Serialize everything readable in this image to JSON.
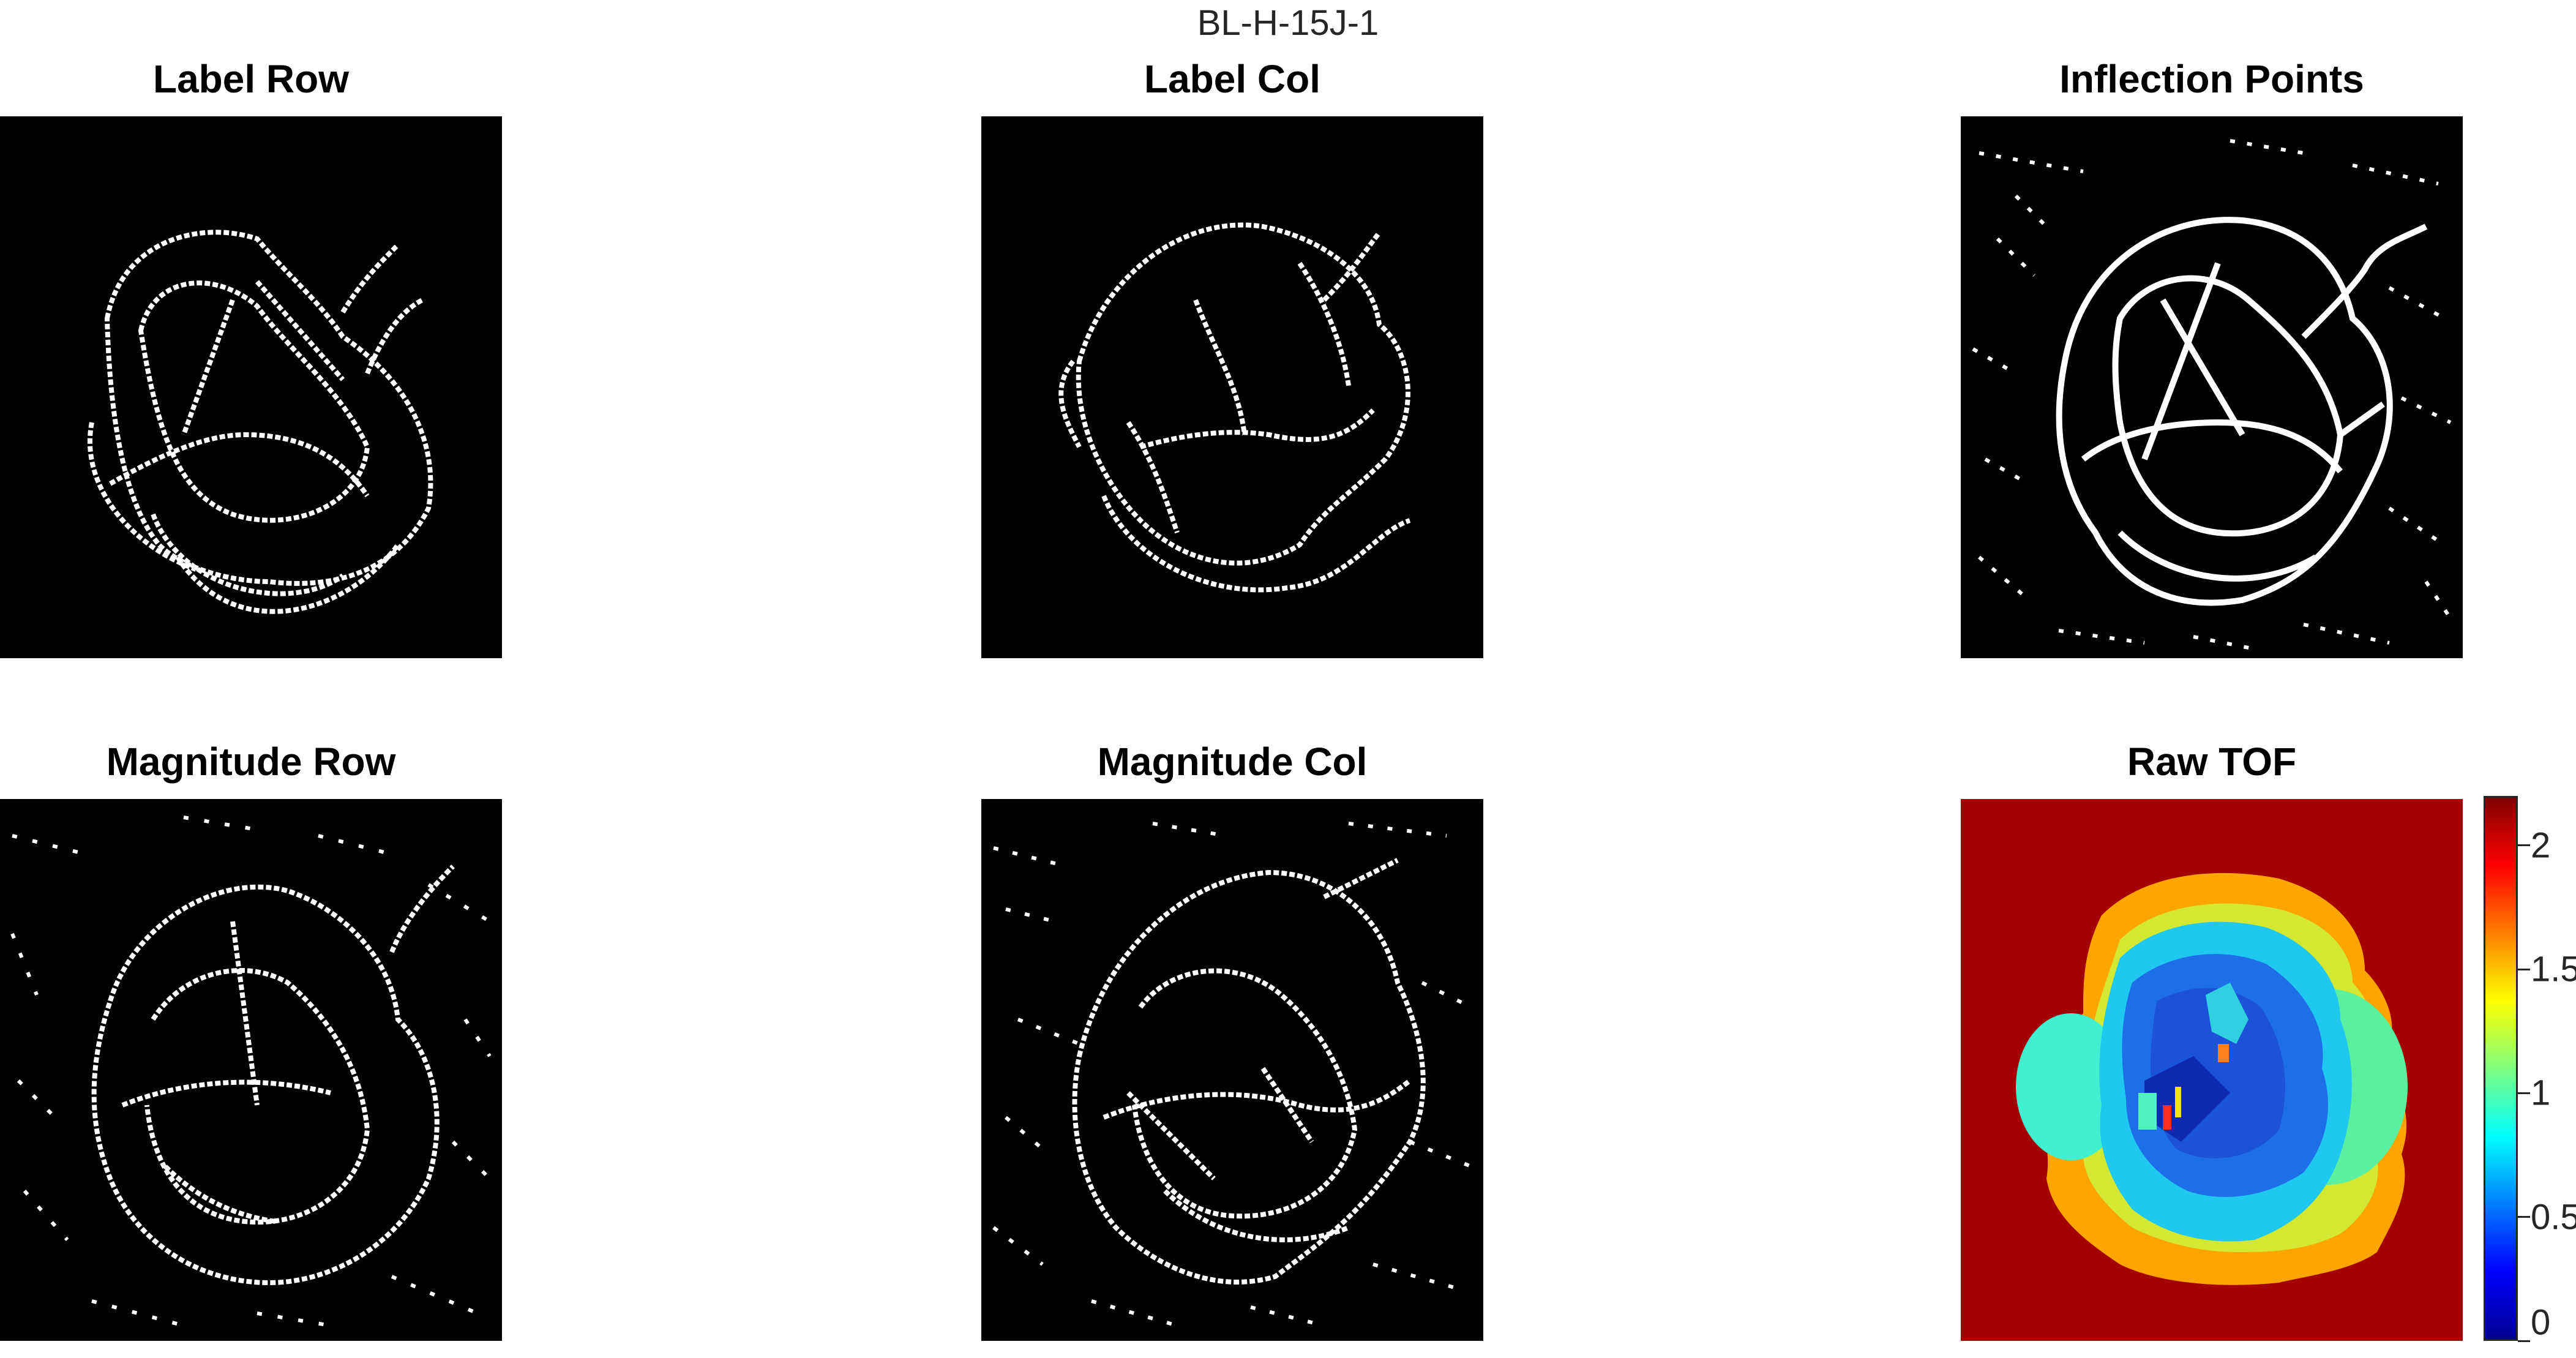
{
  "figure": {
    "suptitle": "BL-H-15J-1",
    "panels": [
      {
        "id": "label-row",
        "title": "Label Row"
      },
      {
        "id": "label-col",
        "title": "Label Col"
      },
      {
        "id": "inflection-points",
        "title": "Inflection Points"
      },
      {
        "id": "magnitude-row",
        "title": "Magnitude Row"
      },
      {
        "id": "magnitude-col",
        "title": "Magnitude Col"
      },
      {
        "id": "raw-tof",
        "title": "Raw TOF"
      }
    ],
    "colorbar": {
      "range": [
        0,
        2.2
      ],
      "colormap": "jet",
      "ticks": [
        {
          "value": 0,
          "label": "0"
        },
        {
          "value": 0.5,
          "label": "0.5"
        },
        {
          "value": 1,
          "label": "1"
        },
        {
          "value": 1.5,
          "label": "1.5"
        },
        {
          "value": 2,
          "label": "2"
        }
      ]
    },
    "colors": {
      "edge_background": "#000000",
      "edge_foreground": "#ffffff",
      "tof_background": "#a50000"
    }
  }
}
